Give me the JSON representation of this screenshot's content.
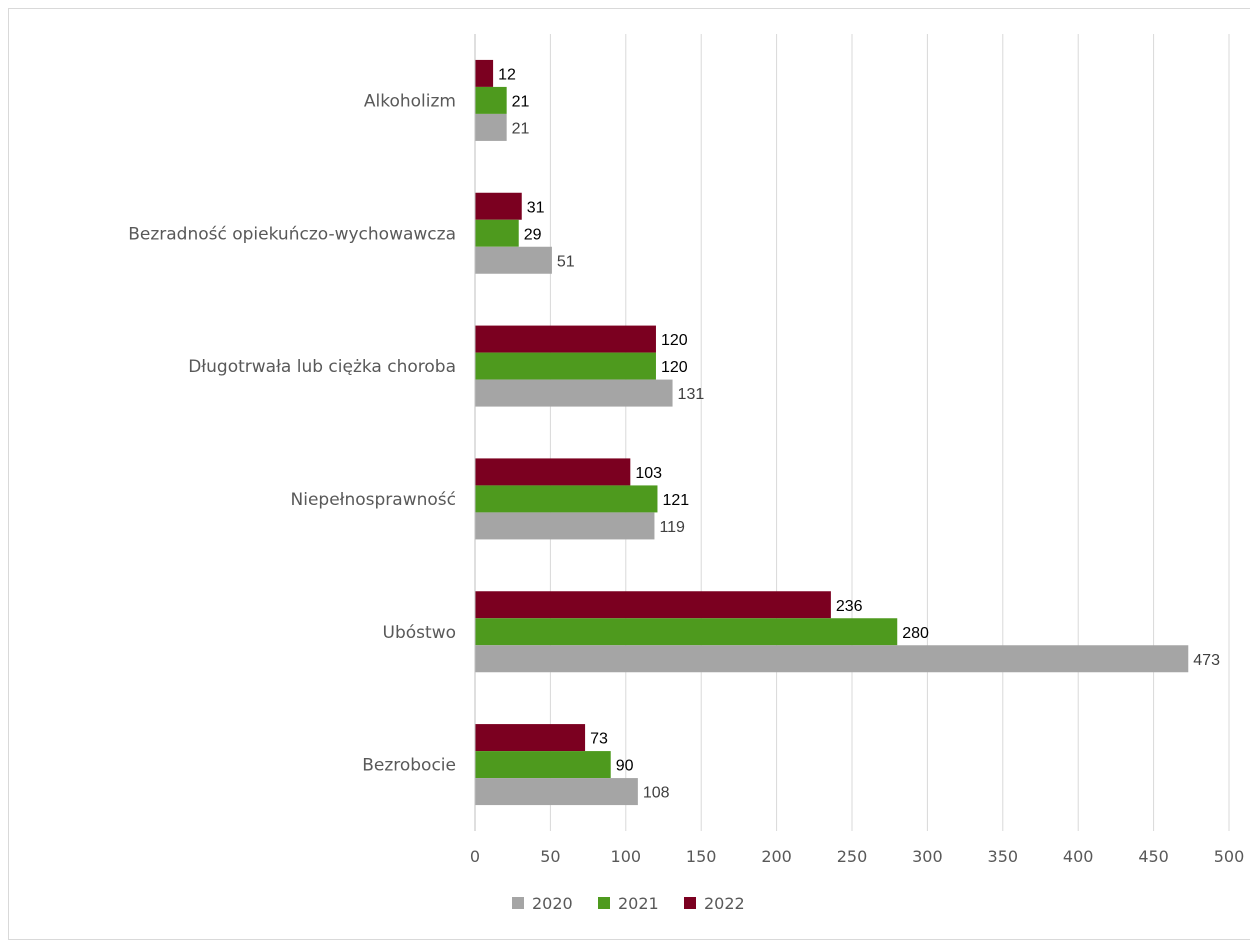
{
  "chart_data": {
    "type": "bar",
    "orientation": "horizontal",
    "categories": [
      "Alkoholizm",
      "Bezradność opiekuńczo-wychowawcza",
      "Długotrwała lub ciężka choroba",
      "Niepełnosprawność",
      "Ubóstwo",
      "Bezrobocie"
    ],
    "series": [
      {
        "name": "2022",
        "color": "#7b0020",
        "values": [
          12,
          31,
          120,
          103,
          236,
          73
        ]
      },
      {
        "name": "2021",
        "color": "#4e9a1e",
        "values": [
          21,
          29,
          120,
          121,
          280,
          90
        ]
      },
      {
        "name": "2020",
        "color": "#a5a5a5",
        "values": [
          21,
          51,
          131,
          119,
          473,
          108
        ]
      }
    ],
    "legend_order": [
      "2020",
      "2021",
      "2022"
    ],
    "xlim": [
      0,
      500
    ],
    "xticks": [
      "0",
      "50",
      "100",
      "150",
      "200",
      "250",
      "300",
      "350",
      "400",
      "450",
      "500"
    ],
    "title": "",
    "xlabel": "",
    "ylabel": "",
    "grid": "vertical",
    "legend_position": "bottom"
  }
}
